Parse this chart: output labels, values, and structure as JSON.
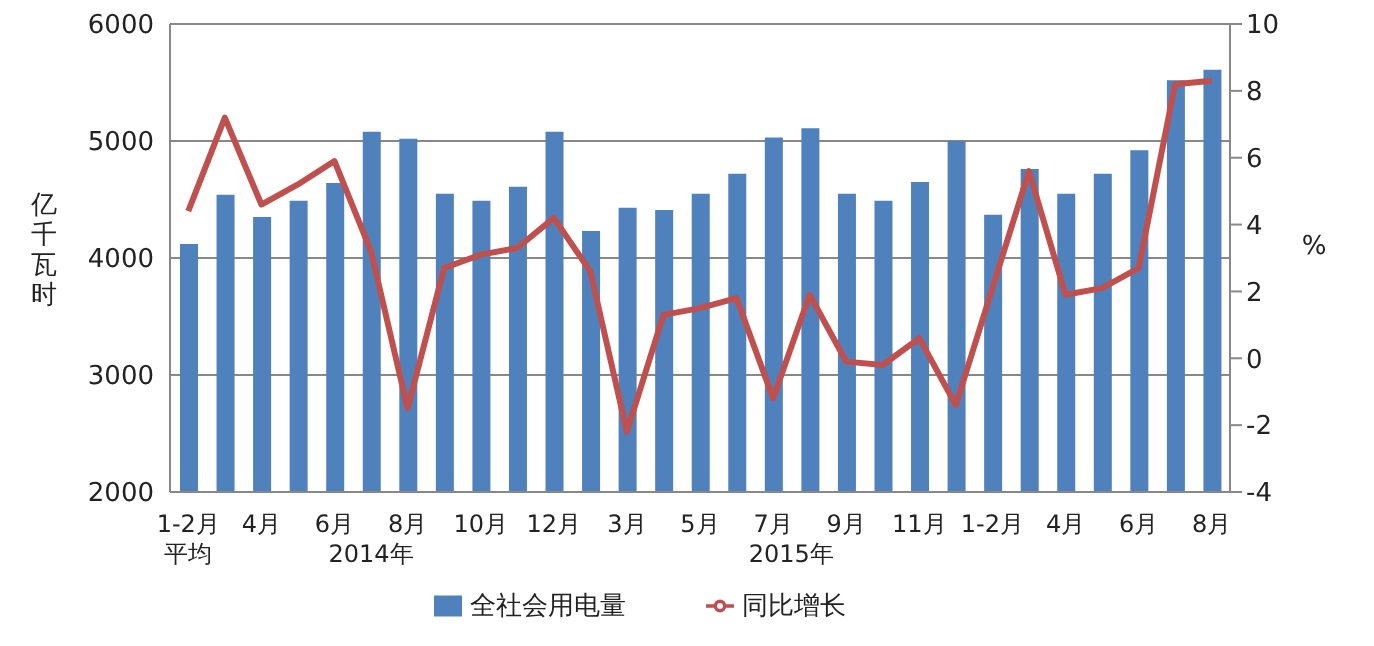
{
  "chart_data": {
    "type": "bar",
    "ylabel": "亿千瓦时",
    "y2label": "%",
    "categories": [
      "1-2月平均",
      null,
      "4月",
      null,
      "6月",
      null,
      "8月",
      null,
      "10月",
      null,
      "12月",
      null,
      "3月",
      null,
      "5月",
      null,
      "7月",
      null,
      "9月",
      null,
      "11月",
      null,
      "1-2月",
      null,
      "4月",
      null,
      "6月",
      null,
      "8月"
    ],
    "series": [
      {
        "name": "全社会用电量",
        "color": "#4f81bd",
        "values": [
          4120,
          4540,
          4350,
          4490,
          4640,
          5080,
          5020,
          4550,
          4490,
          4610,
          5080,
          4230,
          4430,
          4410,
          4550,
          4720,
          5030,
          5110,
          4550,
          4490,
          4650,
          5000,
          4370,
          4760,
          4550,
          4720,
          4920,
          5520,
          5610
        ]
      },
      {
        "name": "同比增长",
        "type": "line",
        "axis": "y2",
        "color": "#c0504d",
        "values": [
          4.4,
          7.2,
          4.6,
          5.2,
          5.9,
          3.2,
          -1.5,
          2.7,
          3.1,
          3.3,
          4.2,
          2.6,
          -2.2,
          1.3,
          1.5,
          1.8,
          -1.2,
          1.9,
          -0.1,
          -0.2,
          0.6,
          -1.4,
          2.1,
          5.6,
          1.9,
          2.1,
          2.7,
          8.2,
          8.3
        ]
      }
    ],
    "ylim": [
      2000,
      6000
    ],
    "yticks": [
      2000,
      3000,
      4000,
      5000,
      6000
    ],
    "y2lim": [
      -4,
      10
    ],
    "y2ticks": [
      -4,
      -2,
      0,
      2,
      4,
      6,
      8,
      10
    ],
    "grid": "y",
    "legend": "bottom",
    "marker": "none",
    "line_style": "solid",
    "annotations": [
      "2014年",
      "2015年"
    ]
  }
}
